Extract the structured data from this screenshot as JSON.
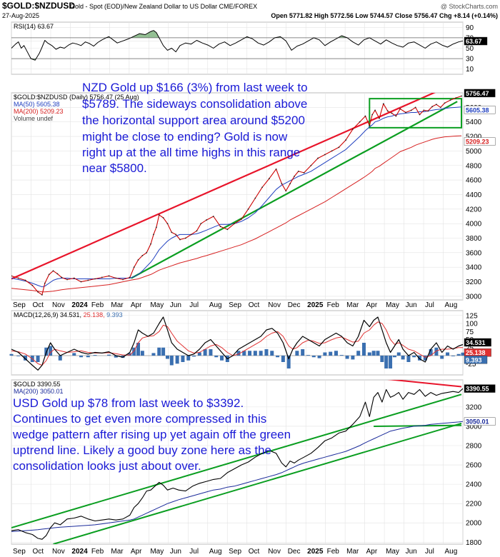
{
  "header": {
    "symbol": "$GOLD:$NZDUSD",
    "description": "Gold - Spot (EOD)/New Zealand Dollar to US Dollar  CME/FOREX",
    "watermark": "@ StockCharts.com",
    "date": "27-Aug-2025",
    "ohlc": "Open 5771.82  High 5772.56  Low 5744.57  Close 5756.47  Chg +8.14 (+0.14%)"
  },
  "colors": {
    "price": "#cc0000",
    "ma50": "#1f3fbf",
    "ma200": "#d62020",
    "resistance": "#e8142a",
    "support": "#0a9e20",
    "note": "#1a1ad6",
    "macd": "#000000",
    "signal": "#e03030",
    "histogram": "#3a6fb0"
  },
  "x_labels": [
    "Sep",
    "Oct",
    "Nov",
    "2024",
    "Feb",
    "Mar",
    "Apr",
    "May",
    "Jun",
    "Jul",
    "Aug",
    "Sep",
    "Oct",
    "Nov",
    "Dec",
    "2025",
    "Feb",
    "Mar",
    "Apr",
    "May",
    "Jun",
    "Jul",
    "Aug"
  ],
  "chart_data": [
    {
      "type": "line",
      "title": "RSI(14) 63.67",
      "ylim": [
        0,
        100
      ],
      "ticks": [
        10,
        30,
        50,
        63.67,
        70,
        90
      ],
      "tick_labels": [
        "10",
        "30",
        "50",
        "63.67",
        "70",
        "90"
      ],
      "current": 63.67,
      "x": [
        0,
        6,
        10,
        14,
        18,
        22,
        28,
        34,
        40,
        44,
        48,
        52,
        58,
        64,
        70,
        76,
        82,
        88,
        94,
        100,
        106,
        112,
        118,
        124,
        130,
        136,
        140,
        146,
        152,
        160,
        168,
        176,
        184,
        192,
        200,
        204,
        208,
        212,
        218,
        224,
        230,
        236,
        242,
        250,
        258,
        266,
        274,
        282,
        290,
        298,
        306,
        314,
        322,
        330,
        338,
        346,
        354,
        362,
        370,
        378,
        386,
        394,
        402,
        410,
        418,
        426,
        434,
        442,
        450,
        458,
        466,
        474,
        482,
        490,
        498,
        506,
        514,
        522,
        530,
        538,
        546,
        554,
        562,
        570,
        578,
        586,
        594,
        602,
        610,
        618,
        626,
        634,
        642,
        648
      ],
      "values": [
        50,
        58,
        62,
        50,
        55,
        45,
        30,
        27,
        40,
        52,
        65,
        60,
        55,
        48,
        52,
        50,
        56,
        60,
        58,
        55,
        62,
        59,
        54,
        61,
        66,
        70,
        72,
        66,
        60,
        64,
        68,
        73,
        78,
        76,
        82,
        84,
        80,
        70,
        55,
        46,
        50,
        43,
        55,
        60,
        58,
        65,
        60,
        56,
        50,
        58,
        62,
        55,
        60,
        66,
        72,
        68,
        60,
        56,
        62,
        70,
        72,
        64,
        46,
        54,
        58,
        64,
        70,
        66,
        55,
        62,
        68,
        74,
        70,
        62,
        56,
        66,
        70,
        64,
        58,
        66,
        60,
        55,
        52,
        60,
        62,
        56,
        50,
        58,
        62,
        56,
        52,
        58,
        62,
        64
      ]
    },
    {
      "type": "line",
      "title": "$GOLD:$NZDUSD (Daily) 5756.47 (25 Aug)",
      "legend": [
        "MA(50) 5605.38",
        "MA(200) 5209.23",
        "Volume undef"
      ],
      "ylim": [
        2950,
        5800
      ],
      "ticks": [
        3000,
        3200,
        3400,
        3600,
        3800,
        4000,
        4200,
        4400,
        4600,
        4800,
        5000,
        5200,
        5400,
        5600
      ],
      "tick_labels": [
        "3000",
        "3200",
        "3400",
        "3600",
        "3800",
        "4000",
        "4200",
        "4400",
        "4600",
        "4800",
        "5000",
        "5200",
        "5400",
        "5600"
      ],
      "last_labels": [
        "5756.47",
        "5605.38",
        "5209.23"
      ],
      "last_values": [
        5756.47,
        5605.38,
        5209.23
      ],
      "x": [
        0,
        10,
        20,
        30,
        38,
        44,
        48,
        54,
        60,
        66,
        72,
        80,
        90,
        100,
        110,
        120,
        130,
        140,
        150,
        160,
        170,
        176,
        182,
        188,
        194,
        200,
        204,
        208,
        212,
        218,
        224,
        230,
        236,
        242,
        250,
        258,
        266,
        272,
        280,
        290,
        300,
        310,
        320,
        330,
        340,
        350,
        360,
        370,
        380,
        388,
        394,
        400,
        406,
        412,
        420,
        430,
        440,
        450,
        460,
        470,
        480,
        490,
        500,
        508,
        514,
        518,
        522,
        528,
        534,
        540,
        546,
        552,
        558,
        566,
        574,
        580,
        586,
        592,
        598,
        604,
        610,
        616,
        622,
        630,
        638,
        646
      ],
      "price": [
        3280,
        3250,
        3220,
        3150,
        3060,
        3020,
        3180,
        3300,
        3350,
        3310,
        3260,
        3230,
        3250,
        3200,
        3220,
        3240,
        3260,
        3280,
        3250,
        3230,
        3260,
        3400,
        3500,
        3560,
        3600,
        3720,
        3850,
        3950,
        4120,
        4080,
        4000,
        3880,
        3850,
        3780,
        3800,
        3850,
        3900,
        4000,
        4050,
        4100,
        3960,
        3920,
        4000,
        4060,
        4200,
        4350,
        4500,
        4620,
        4750,
        4550,
        4450,
        4550,
        4650,
        4720,
        4700,
        4800,
        4900,
        4950,
        5000,
        5050,
        5150,
        5300,
        5400,
        5480,
        5350,
        5500,
        5560,
        5450,
        5650,
        5550,
        5520,
        5480,
        5580,
        5530,
        5560,
        5600,
        5500,
        5560,
        5550,
        5610,
        5640,
        5600,
        5660,
        5700,
        5730,
        5756
      ],
      "ma50": [
        3250,
        3230,
        3210,
        3180,
        3150,
        3130,
        3140,
        3180,
        3220,
        3240,
        3250,
        3250,
        3240,
        3240,
        3240,
        3240,
        3240,
        3240,
        3250,
        3250,
        3250,
        3270,
        3300,
        3350,
        3410,
        3470,
        3520,
        3580,
        3640,
        3700,
        3760,
        3800,
        3830,
        3850,
        3850,
        3850,
        3860,
        3880,
        3910,
        3950,
        3990,
        3990,
        4000,
        4030,
        4080,
        4150,
        4250,
        4360,
        4470,
        4530,
        4560,
        4590,
        4620,
        4650,
        4680,
        4720,
        4780,
        4840,
        4900,
        4960,
        5020,
        5110,
        5200,
        5280,
        5330,
        5360,
        5400,
        5420,
        5450,
        5470,
        5480,
        5500,
        5510,
        5520,
        5530,
        5530,
        5540,
        5540,
        5550,
        5560,
        5570,
        5575,
        5585,
        5595,
        5600,
        5605
      ],
      "ma200": [
        3110,
        3100,
        3090,
        3080,
        3070,
        3060,
        3060,
        3065,
        3070,
        3080,
        3090,
        3100,
        3110,
        3120,
        3130,
        3140,
        3150,
        3160,
        3180,
        3200,
        3220,
        3230,
        3240,
        3260,
        3280,
        3300,
        3320,
        3340,
        3360,
        3380,
        3400,
        3420,
        3440,
        3460,
        3480,
        3500,
        3520,
        3540,
        3560,
        3590,
        3620,
        3650,
        3680,
        3710,
        3750,
        3790,
        3840,
        3890,
        3940,
        3980,
        4010,
        4050,
        4080,
        4110,
        4150,
        4200,
        4250,
        4300,
        4360,
        4420,
        4480,
        4540,
        4600,
        4650,
        4690,
        4720,
        4760,
        4790,
        4830,
        4870,
        4910,
        4950,
        4990,
        5020,
        5050,
        5080,
        5100,
        5120,
        5140,
        5160,
        5175,
        5185,
        5195,
        5200,
        5205,
        5209
      ],
      "trendlines": [
        {
          "kind": "resistance",
          "x": [
            0,
            630
          ],
          "y": [
            3240,
            5900
          ]
        },
        {
          "kind": "support",
          "x": [
            172,
            640
          ],
          "y": [
            3250,
            5680
          ]
        }
      ],
      "box": {
        "x": [
          514,
          646
        ],
        "y": [
          5320,
          5720
        ]
      },
      "annotation": "NZD Gold up $166 (3%) from last week to $5789. The sideways consolidation above the horizontal support area around $5200 might be close to ending? Gold is now right up at the all time highs in this range near $5800."
    },
    {
      "type": "line",
      "title": "MACD(12,26,9) 34.531, 25.138, 9.393",
      "legend": [
        "MACD(12,26,9)",
        "34.531",
        "25.138",
        "9.393"
      ],
      "ylim": [
        -60,
        140
      ],
      "ticks": [
        -25,
        0,
        25,
        50,
        75,
        100,
        125
      ],
      "tick_labels": [
        "-25",
        "0",
        "25",
        "50",
        "75",
        "100",
        "125"
      ],
      "last_labels": [
        "34.531",
        "25.138",
        "9.393"
      ],
      "x": [
        0,
        10,
        20,
        30,
        38,
        44,
        50,
        56,
        62,
        70,
        80,
        90,
        100,
        110,
        120,
        130,
        140,
        150,
        160,
        170,
        176,
        182,
        188,
        196,
        204,
        212,
        218,
        224,
        230,
        238,
        246,
        254,
        262,
        270,
        278,
        286,
        294,
        302,
        310,
        318,
        326,
        334,
        342,
        350,
        358,
        366,
        374,
        382,
        390,
        398,
        404,
        410,
        418,
        426,
        434,
        442,
        450,
        458,
        466,
        474,
        482,
        490,
        498,
        506,
        514,
        520,
        526,
        532,
        538,
        544,
        550,
        556,
        562,
        570,
        578,
        586,
        594,
        602,
        610,
        618,
        626,
        634,
        642,
        648
      ],
      "macd": [
        20,
        10,
        -10,
        -30,
        -45,
        -30,
        10,
        40,
        20,
        0,
        10,
        20,
        10,
        5,
        10,
        8,
        12,
        0,
        -5,
        10,
        40,
        80,
        70,
        60,
        70,
        100,
        120,
        80,
        40,
        20,
        10,
        0,
        5,
        20,
        40,
        50,
        30,
        10,
        -10,
        0,
        20,
        30,
        40,
        50,
        60,
        80,
        85,
        70,
        40,
        -10,
        20,
        40,
        60,
        50,
        40,
        30,
        50,
        60,
        70,
        60,
        40,
        30,
        60,
        110,
        90,
        110,
        120,
        80,
        40,
        10,
        30,
        50,
        20,
        0,
        10,
        -10,
        -20,
        20,
        40,
        10,
        30,
        20,
        30,
        34.5
      ],
      "signal": [
        15,
        12,
        5,
        -10,
        -25,
        -30,
        -15,
        10,
        20,
        15,
        10,
        12,
        15,
        10,
        8,
        8,
        9,
        6,
        2,
        2,
        15,
        40,
        55,
        60,
        62,
        75,
        95,
        90,
        70,
        45,
        30,
        15,
        8,
        10,
        20,
        30,
        35,
        25,
        10,
        0,
        5,
        15,
        25,
        35,
        45,
        60,
        70,
        75,
        60,
        30,
        20,
        25,
        40,
        48,
        45,
        38,
        40,
        48,
        55,
        58,
        50,
        42,
        45,
        70,
        80,
        95,
        105,
        100,
        80,
        50,
        35,
        40,
        32,
        20,
        15,
        5,
        -5,
        0,
        15,
        20,
        20,
        22,
        25,
        25.1
      ],
      "hist": [
        5,
        -2,
        -15,
        -20,
        -20,
        0,
        25,
        30,
        0,
        -15,
        0,
        8,
        -5,
        -5,
        2,
        0,
        3,
        -6,
        -7,
        8,
        25,
        40,
        15,
        0,
        8,
        25,
        25,
        -10,
        -30,
        -25,
        -20,
        -15,
        -3,
        10,
        20,
        20,
        -5,
        -15,
        -20,
        0,
        15,
        15,
        15,
        15,
        15,
        20,
        15,
        -5,
        -20,
        -40,
        0,
        15,
        20,
        2,
        -5,
        -8,
        10,
        12,
        15,
        2,
        -10,
        -12,
        15,
        40,
        10,
        15,
        15,
        -20,
        -40,
        -40,
        -5,
        10,
        -12,
        -20,
        -5,
        -15,
        -15,
        20,
        25,
        -10,
        10,
        -2,
        5,
        9.4
      ]
    },
    {
      "type": "line",
      "title": "$GOLD 3390.55",
      "legend": [
        "$GOLD 3390.55",
        "MA(200) 3050.01"
      ],
      "ylim": [
        1780,
        3480
      ],
      "ticks": [
        1800,
        2000,
        2200,
        2400,
        2600,
        2800,
        3000,
        3200
      ],
      "tick_labels": [
        "1800",
        "2000",
        "2200",
        "2400",
        "2600",
        "2800",
        "3000",
        "3200"
      ],
      "last_labels": [
        "3390.55",
        "3050.01"
      ],
      "last_values": [
        3390.55,
        3050.01
      ],
      "x": [
        0,
        10,
        20,
        30,
        38,
        44,
        50,
        56,
        62,
        70,
        80,
        90,
        100,
        110,
        120,
        130,
        140,
        150,
        160,
        170,
        176,
        182,
        188,
        194,
        200,
        206,
        212,
        218,
        224,
        232,
        240,
        250,
        260,
        270,
        280,
        290,
        300,
        310,
        320,
        330,
        340,
        350,
        360,
        370,
        380,
        388,
        394,
        400,
        406,
        412,
        420,
        430,
        440,
        450,
        460,
        470,
        480,
        490,
        500,
        508,
        514,
        520,
        526,
        532,
        538,
        544,
        550,
        556,
        562,
        570,
        578,
        586,
        594,
        602,
        610,
        618,
        626,
        634,
        642,
        648
      ],
      "price": [
        1920,
        1930,
        1900,
        1880,
        1840,
        1830,
        1870,
        1950,
        2000,
        1980,
        2040,
        2050,
        2070,
        2040,
        2020,
        2030,
        2040,
        2030,
        2040,
        2080,
        2160,
        2200,
        2260,
        2330,
        2340,
        2380,
        2420,
        2390,
        2340,
        2360,
        2340,
        2330,
        2380,
        2410,
        2430,
        2450,
        2460,
        2520,
        2560,
        2600,
        2630,
        2680,
        2720,
        2750,
        2720,
        2620,
        2580,
        2640,
        2620,
        2650,
        2680,
        2720,
        2780,
        2850,
        2880,
        2930,
        2950,
        3020,
        3100,
        3250,
        3100,
        3300,
        3350,
        3250,
        3380,
        3300,
        3320,
        3350,
        3280,
        3350,
        3330,
        3380,
        3310,
        3350,
        3320,
        3340,
        3350,
        3360,
        3350,
        3390
      ],
      "ma200": [
        1910,
        1915,
        1920,
        1925,
        1930,
        1935,
        1940,
        1945,
        1950,
        1955,
        1960,
        1965,
        1970,
        1975,
        1980,
        1990,
        2000,
        2010,
        2020,
        2030,
        2040,
        2060,
        2080,
        2100,
        2120,
        2140,
        2160,
        2180,
        2200,
        2220,
        2240,
        2260,
        2280,
        2300,
        2320,
        2340,
        2350,
        2370,
        2380,
        2400,
        2420,
        2440,
        2460,
        2480,
        2500,
        2520,
        2540,
        2560,
        2580,
        2600,
        2620,
        2640,
        2660,
        2680,
        2700,
        2720,
        2740,
        2770,
        2800,
        2830,
        2850,
        2870,
        2890,
        2910,
        2930,
        2950,
        2960,
        2970,
        2980,
        2990,
        3000,
        3005,
        3010,
        3020,
        3025,
        3030,
        3035,
        3040,
        3045,
        3050.01
      ],
      "trendlines": [
        {
          "kind": "upper",
          "x": [
            0,
            646
          ],
          "y": [
            1950,
            3330
          ]
        },
        {
          "kind": "lower",
          "x": [
            60,
            646
          ],
          "y": [
            1780,
            3030
          ]
        },
        {
          "kind": "flat",
          "x": [
            520,
            646
          ],
          "y": [
            3000,
            3010
          ]
        },
        {
          "kind": "wedge-top",
          "x": [
            536,
            646
          ],
          "y": [
            3490,
            3410
          ]
        }
      ],
      "annotation": "USD Gold up $78 from last week to $3392. Continues to get even more compressed in this wedge pattern after rising up yet again off the green uptrend line. Likely a good buy zone here as the consolidation looks just about over."
    }
  ]
}
